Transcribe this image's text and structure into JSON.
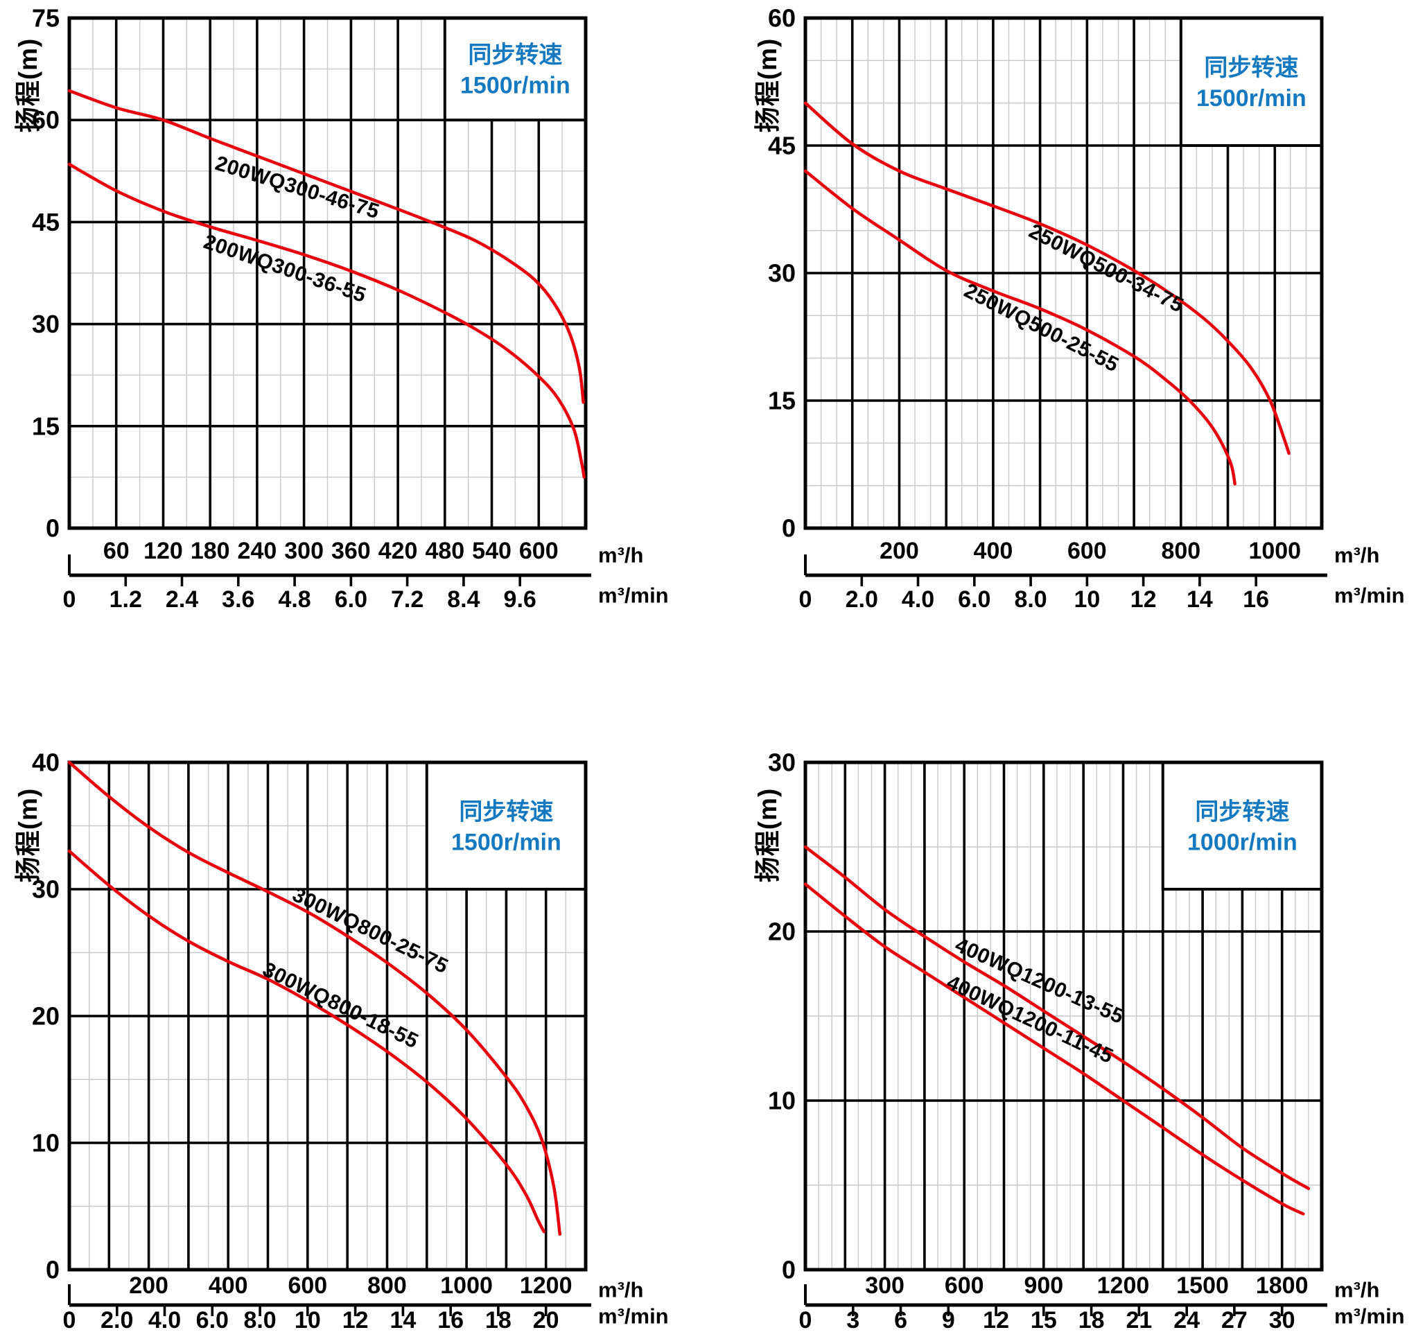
{
  "colors": {
    "curve_red": "#e8000d",
    "accent_blue": "#1479c0",
    "grid_major": "#000000",
    "grid_minor": "#c9c9c9",
    "text": "#000000",
    "box_fill": "#ffffff"
  },
  "chart_data": [
    {
      "type": "line",
      "y_axis": {
        "label": "扬程(m)",
        "min": 0,
        "max": 75,
        "major_step": 15,
        "minors_between": 1,
        "ticks": [
          {
            "t": "0",
            "v": 0
          },
          {
            "t": "15",
            "v": 15
          },
          {
            "t": "30",
            "v": 30
          },
          {
            "t": "45",
            "v": 45
          },
          {
            "t": "60",
            "v": 60
          },
          {
            "t": "75",
            "v": 75
          }
        ]
      },
      "x_axis_h": {
        "unit": "m³/h",
        "min": 0,
        "max": 660,
        "major_step": 60,
        "minors_between": 1,
        "labels": [
          {
            "t": "60",
            "v": 60
          },
          {
            "t": "120",
            "v": 120
          },
          {
            "t": "180",
            "v": 180
          },
          {
            "t": "240",
            "v": 240
          },
          {
            "t": "300",
            "v": 300
          },
          {
            "t": "360",
            "v": 360
          },
          {
            "t": "420",
            "v": 420
          },
          {
            "t": "480",
            "v": 480
          },
          {
            "t": "540",
            "v": 540
          },
          {
            "t": "600",
            "v": 600
          }
        ]
      },
      "x_axis_min": {
        "unit": "m³/min",
        "labels": [
          {
            "t": "0",
            "v": 0
          },
          {
            "t": "1.2",
            "v": 72
          },
          {
            "t": "2.4",
            "v": 144
          },
          {
            "t": "3.6",
            "v": 216
          },
          {
            "t": "4.8",
            "v": 288
          },
          {
            "t": "6.0",
            "v": 360
          },
          {
            "t": "7.2",
            "v": 432
          },
          {
            "t": "8.4",
            "v": 504
          },
          {
            "t": "9.6",
            "v": 576
          }
        ]
      },
      "speed_box": {
        "line1": "同步转速",
        "line2": "1500r/min",
        "x1": 480,
        "x2": 660,
        "y1": 60,
        "y2": 75
      },
      "series": [
        {
          "name": "200WQ300-46-75",
          "points": [
            [
              0,
              64.3
            ],
            [
              60,
              61.8
            ],
            [
              120,
              60.0
            ],
            [
              180,
              57.3
            ],
            [
              240,
              54.7
            ],
            [
              300,
              52.1
            ],
            [
              360,
              49.5
            ],
            [
              420,
              46.9
            ],
            [
              480,
              44.2
            ],
            [
              520,
              42.2
            ],
            [
              560,
              39.5
            ],
            [
              595,
              36.5
            ],
            [
              620,
              33.0
            ],
            [
              640,
              28.5
            ],
            [
              652,
              23.5
            ],
            [
              657,
              18.5
            ]
          ],
          "label": {
            "x": 185,
            "y": 52.8,
            "angle": 17
          }
        },
        {
          "name": "200WQ300-36-55",
          "points": [
            [
              0,
              53.5
            ],
            [
              60,
              49.6
            ],
            [
              120,
              46.6
            ],
            [
              180,
              44.3
            ],
            [
              240,
              42.3
            ],
            [
              300,
              40.2
            ],
            [
              360,
              37.8
            ],
            [
              420,
              35.0
            ],
            [
              480,
              31.7
            ],
            [
              520,
              29.2
            ],
            [
              560,
              26.2
            ],
            [
              600,
              22.3
            ],
            [
              625,
              19.0
            ],
            [
              645,
              14.5
            ],
            [
              655,
              9.5
            ],
            [
              658,
              7.5
            ]
          ],
          "label": {
            "x": 170,
            "y": 41.3,
            "angle": 19
          }
        }
      ]
    },
    {
      "type": "line",
      "y_axis": {
        "label": "扬程(m)",
        "min": 0,
        "max": 60,
        "major_step": 15,
        "minors_between": 2,
        "ticks": [
          {
            "t": "0",
            "v": 0
          },
          {
            "t": "15",
            "v": 15
          },
          {
            "t": "30",
            "v": 30
          },
          {
            "t": "45",
            "v": 45
          },
          {
            "t": "60",
            "v": 60
          }
        ]
      },
      "x_axis_h": {
        "unit": "m³/h",
        "min": 0,
        "max": 1100,
        "major_step": 100,
        "minors_between": 2,
        "labels": [
          {
            "t": "200",
            "v": 200
          },
          {
            "t": "400",
            "v": 400
          },
          {
            "t": "600",
            "v": 600
          },
          {
            "t": "800",
            "v": 800
          },
          {
            "t": "1000",
            "v": 1000
          }
        ]
      },
      "x_axis_min": {
        "unit": "m³/min",
        "labels": [
          {
            "t": "0",
            "v": 0
          },
          {
            "t": "2.0",
            "v": 120
          },
          {
            "t": "4.0",
            "v": 240
          },
          {
            "t": "6.0",
            "v": 360
          },
          {
            "t": "8.0",
            "v": 480
          },
          {
            "t": "10",
            "v": 600
          },
          {
            "t": "12",
            "v": 720
          },
          {
            "t": "14",
            "v": 840
          },
          {
            "t": "16",
            "v": 960
          }
        ]
      },
      "speed_box": {
        "line1": "同步转速",
        "line2": "1500r/min",
        "x1": 800,
        "x2": 1100,
        "y1": 45,
        "y2": 60
      },
      "series": [
        {
          "name": "250WQ500-34-75",
          "points": [
            [
              0,
              50
            ],
            [
              100,
              45.2
            ],
            [
              200,
              42.0
            ],
            [
              300,
              39.9
            ],
            [
              400,
              37.9
            ],
            [
              500,
              35.8
            ],
            [
              600,
              33.3
            ],
            [
              700,
              30.3
            ],
            [
              780,
              27.5
            ],
            [
              850,
              24.6
            ],
            [
              900,
              22.0
            ],
            [
              950,
              18.8
            ],
            [
              990,
              15.0
            ],
            [
              1020,
              10.5
            ],
            [
              1030,
              8.8
            ]
          ],
          "label": {
            "x": 473,
            "y": 34.4,
            "angle": 27
          }
        },
        {
          "name": "250WQ500-25-55",
          "points": [
            [
              0,
              42
            ],
            [
              100,
              37.6
            ],
            [
              200,
              33.9
            ],
            [
              300,
              30.3
            ],
            [
              400,
              27.9
            ],
            [
              500,
              25.8
            ],
            [
              600,
              23.3
            ],
            [
              700,
              20.2
            ],
            [
              760,
              17.8
            ],
            [
              820,
              14.9
            ],
            [
              870,
              11.6
            ],
            [
              905,
              7.8
            ],
            [
              915,
              5.2
            ]
          ],
          "label": {
            "x": 335,
            "y": 27.4,
            "angle": 27
          }
        }
      ]
    },
    {
      "type": "line",
      "y_axis": {
        "label": "扬程(m)",
        "min": 0,
        "max": 40,
        "major_step": 10,
        "minors_between": 1,
        "ticks": [
          {
            "t": "0",
            "v": 0
          },
          {
            "t": "10",
            "v": 10
          },
          {
            "t": "20",
            "v": 20
          },
          {
            "t": "30",
            "v": 30
          },
          {
            "t": "40",
            "v": 40
          }
        ]
      },
      "x_axis_h": {
        "unit": "m³/h",
        "min": 0,
        "max": 1300,
        "major_step": 100,
        "minors_between": 1,
        "labels": [
          {
            "t": "200",
            "v": 200
          },
          {
            "t": "400",
            "v": 400
          },
          {
            "t": "600",
            "v": 600
          },
          {
            "t": "800",
            "v": 800
          },
          {
            "t": "1000",
            "v": 1000
          },
          {
            "t": "1200",
            "v": 1200
          }
        ]
      },
      "x_axis_min": {
        "unit": "m³/min",
        "labels": [
          {
            "t": "0",
            "v": 0
          },
          {
            "t": "2.0",
            "v": 120
          },
          {
            "t": "4.0",
            "v": 240
          },
          {
            "t": "6.0",
            "v": 360
          },
          {
            "t": "8.0",
            "v": 480
          },
          {
            "t": "10",
            "v": 600
          },
          {
            "t": "12",
            "v": 720
          },
          {
            "t": "14",
            "v": 840
          },
          {
            "t": "16",
            "v": 960
          },
          {
            "t": "18",
            "v": 1080
          },
          {
            "t": "20",
            "v": 1200
          }
        ]
      },
      "speed_box": {
        "line1": "同步转速",
        "line2": "1500r/min",
        "x1": 900,
        "x2": 1300,
        "y1": 30,
        "y2": 40
      },
      "series": [
        {
          "name": "300WQ800-25-75",
          "points": [
            [
              0,
              40
            ],
            [
              100,
              37.3
            ],
            [
              200,
              34.9
            ],
            [
              300,
              32.9
            ],
            [
              400,
              31.3
            ],
            [
              500,
              29.8
            ],
            [
              600,
              28.2
            ],
            [
              700,
              26.3
            ],
            [
              800,
              24.2
            ],
            [
              900,
              21.8
            ],
            [
              1000,
              18.9
            ],
            [
              1100,
              15.2
            ],
            [
              1150,
              12.9
            ],
            [
              1190,
              10.2
            ],
            [
              1220,
              6.5
            ],
            [
              1235,
              2.8
            ]
          ],
          "label": {
            "x": 558,
            "y": 29.2,
            "angle": 26
          }
        },
        {
          "name": "300WQ800-18-55",
          "points": [
            [
              0,
              33
            ],
            [
              100,
              30.3
            ],
            [
              200,
              27.9
            ],
            [
              300,
              25.9
            ],
            [
              400,
              24.3
            ],
            [
              500,
              22.9
            ],
            [
              600,
              21.2
            ],
            [
              700,
              19.3
            ],
            [
              800,
              17.2
            ],
            [
              900,
              14.8
            ],
            [
              1000,
              11.9
            ],
            [
              1100,
              8.3
            ],
            [
              1150,
              5.9
            ],
            [
              1180,
              3.9
            ],
            [
              1195,
              3.0
            ]
          ],
          "label": {
            "x": 483,
            "y": 23.3,
            "angle": 26
          }
        }
      ]
    },
    {
      "type": "line",
      "y_axis": {
        "label": "扬程(m)",
        "min": 0,
        "max": 30,
        "major_step": 10,
        "minors_between": 1,
        "ticks": [
          {
            "t": "0",
            "v": 0
          },
          {
            "t": "10",
            "v": 10
          },
          {
            "t": "20",
            "v": 20
          },
          {
            "t": "30",
            "v": 30
          }
        ]
      },
      "x_axis_h": {
        "unit": "m³/h",
        "min": 0,
        "max": 1950,
        "major_step": 150,
        "minors_between": 2,
        "labels": [
          {
            "t": "300",
            "v": 300
          },
          {
            "t": "600",
            "v": 600
          },
          {
            "t": "900",
            "v": 900
          },
          {
            "t": "1200",
            "v": 1200
          },
          {
            "t": "1500",
            "v": 1500
          },
          {
            "t": "1800",
            "v": 1800
          }
        ]
      },
      "x_axis_min": {
        "unit": "m³/min",
        "labels": [
          {
            "t": "0",
            "v": 0
          },
          {
            "t": "3",
            "v": 180
          },
          {
            "t": "6",
            "v": 360
          },
          {
            "t": "9",
            "v": 540
          },
          {
            "t": "12",
            "v": 720
          },
          {
            "t": "15",
            "v": 900
          },
          {
            "t": "18",
            "v": 1080
          },
          {
            "t": "21",
            "v": 1260
          },
          {
            "t": "24",
            "v": 1440
          },
          {
            "t": "27",
            "v": 1620
          },
          {
            "t": "30",
            "v": 1800
          }
        ]
      },
      "speed_box": {
        "line1": "同步转速",
        "line2": "1000r/min",
        "x1": 1350,
        "x2": 1950,
        "y1": 22.5,
        "y2": 30
      },
      "series": [
        {
          "name": "400WQ1200-13-55",
          "points": [
            [
              0,
              25
            ],
            [
              150,
              23.2
            ],
            [
              300,
              21.3
            ],
            [
              450,
              19.7
            ],
            [
              600,
              18.2
            ],
            [
              750,
              16.8
            ],
            [
              900,
              15.3
            ],
            [
              1050,
              13.8
            ],
            [
              1200,
              12.3
            ],
            [
              1350,
              10.7
            ],
            [
              1500,
              9.0
            ],
            [
              1650,
              7.2
            ],
            [
              1800,
              5.7
            ],
            [
              1900,
              4.8
            ]
          ],
          "label": {
            "x": 560,
            "y": 18.9,
            "angle": 24
          }
        },
        {
          "name": "400WQ1200-11-45",
          "points": [
            [
              0,
              22.8
            ],
            [
              150,
              20.9
            ],
            [
              300,
              19.1
            ],
            [
              450,
              17.6
            ],
            [
              600,
              16.1
            ],
            [
              750,
              14.6
            ],
            [
              900,
              13.1
            ],
            [
              1050,
              11.6
            ],
            [
              1200,
              10.0
            ],
            [
              1350,
              8.4
            ],
            [
              1500,
              6.8
            ],
            [
              1650,
              5.3
            ],
            [
              1800,
              3.9
            ],
            [
              1880,
              3.3
            ]
          ],
          "label": {
            "x": 528,
            "y": 16.7,
            "angle": 25
          }
        }
      ]
    }
  ]
}
